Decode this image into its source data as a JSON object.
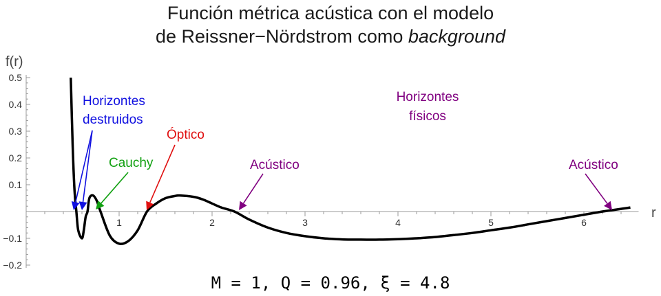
{
  "chart_data": {
    "type": "line",
    "title_line1": "Función métrica acústica con el modelo",
    "title_line2_a": "de Reissner−Nördstrom como ",
    "title_line2_b": "background",
    "xlabel": "r",
    "ylabel": "f(r)",
    "xlim": [
      0,
      6.5
    ],
    "ylim": [
      -0.2,
      0.5
    ],
    "x_ticks": [
      1,
      2,
      3,
      4,
      5,
      6
    ],
    "x_tick_labels": [
      "1",
      "2",
      "3",
      "4",
      "5",
      "6"
    ],
    "y_ticks": [
      -0.2,
      -0.1,
      0.1,
      0.2,
      0.3,
      0.4,
      0.5
    ],
    "y_tick_labels": [
      "−0.2",
      "−0.1",
      "0.1",
      "0.2",
      "0.3",
      "0.4",
      "0.5"
    ],
    "series": [
      {
        "x": [
          0.48,
          0.5,
          0.52,
          0.54,
          0.56,
          0.6,
          0.62,
          0.64,
          0.66,
          0.68,
          0.72,
          0.76,
          0.8,
          0.9,
          1.0,
          1.1,
          1.2,
          1.3,
          1.4,
          1.5,
          1.6,
          1.65,
          1.8,
          1.9,
          2.0,
          2.1,
          2.24,
          2.4,
          2.6,
          2.8,
          3.0,
          3.2,
          3.4,
          3.6,
          3.8,
          4.0,
          4.2,
          4.4,
          4.6,
          4.8,
          5.0,
          5.2,
          5.4,
          5.6,
          5.8,
          6.0,
          6.2,
          6.3,
          6.4,
          6.5
        ],
        "y": [
          0.5,
          0.25,
          0.08,
          0.0,
          -0.07,
          -0.1,
          -0.07,
          -0.02,
          0.0,
          0.05,
          0.06,
          0.04,
          0.0,
          -0.09,
          -0.12,
          -0.11,
          -0.07,
          0.0,
          0.03,
          0.05,
          0.058,
          0.06,
          0.055,
          0.045,
          0.03,
          0.015,
          0.0,
          -0.03,
          -0.06,
          -0.08,
          -0.092,
          -0.1,
          -0.104,
          -0.105,
          -0.105,
          -0.103,
          -0.1,
          -0.095,
          -0.088,
          -0.08,
          -0.07,
          -0.06,
          -0.048,
          -0.036,
          -0.024,
          -0.012,
          0.0,
          0.005,
          0.01,
          0.015
        ],
        "color": "#000000"
      }
    ],
    "annotations": [
      {
        "lines": [
          "Horizontes",
          "destruidos"
        ],
        "color": "#1010e0"
      },
      {
        "lines": [
          "Cauchy"
        ],
        "color": "#10a010"
      },
      {
        "lines": [
          "Óptico"
        ],
        "color": "#e01010"
      },
      {
        "lines": [
          "Acústico"
        ],
        "color": "#800080"
      },
      {
        "lines": [
          "Horizontes",
          "físicos"
        ],
        "color": "#800080"
      },
      {
        "lines": [
          "Acústico"
        ],
        "color": "#800080"
      }
    ]
  },
  "caption": "M = 1, Q = 0.96, ξ = 4.8"
}
